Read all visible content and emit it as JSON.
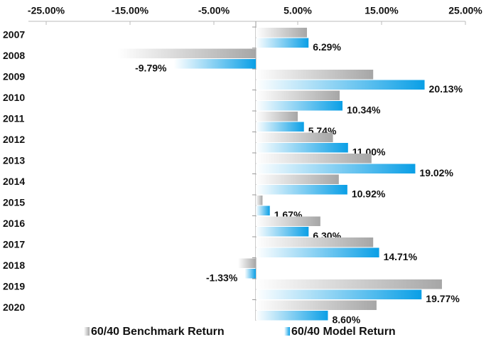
{
  "chart_data": {
    "type": "bar",
    "orientation": "horizontal",
    "categories": [
      "2007",
      "2008",
      "2009",
      "2010",
      "2011",
      "2012",
      "2013",
      "2014",
      "2015",
      "2016",
      "2017",
      "2018",
      "2019",
      "2020"
    ],
    "series": [
      {
        "name": "60/40 Benchmark Return",
        "color": "#a6a6a6",
        "values": [
          6.1,
          -16.5,
          14.0,
          10.0,
          5.0,
          9.2,
          13.8,
          9.9,
          0.8,
          7.7,
          14.0,
          -2.1,
          22.2,
          14.4
        ]
      },
      {
        "name": "60/40 Model Return",
        "color": "#0a9fe6",
        "values": [
          6.29,
          -9.79,
          20.13,
          10.34,
          5.74,
          11.0,
          19.02,
          10.92,
          1.67,
          6.3,
          14.71,
          -1.33,
          19.77,
          8.6
        ],
        "value_labels": [
          "6.29%",
          "-9.79%",
          "20.13%",
          "10.34%",
          "5.74%",
          "11.00%",
          "19.02%",
          "10.92%",
          "1.67%",
          "6.30%",
          "14.71%",
          "-1.33%",
          "19.77%",
          "8.60%"
        ]
      }
    ],
    "xlim": [
      -25,
      25
    ],
    "xticks": [
      {
        "value": -25,
        "label": "-25.00%"
      },
      {
        "value": -15,
        "label": "-15.00%"
      },
      {
        "value": -5,
        "label": "-5.00%"
      },
      {
        "value": 5,
        "label": "5.00%"
      },
      {
        "value": 15,
        "label": "15.00%"
      },
      {
        "value": 25,
        "label": "25.00%"
      }
    ],
    "legend": "bottom"
  }
}
